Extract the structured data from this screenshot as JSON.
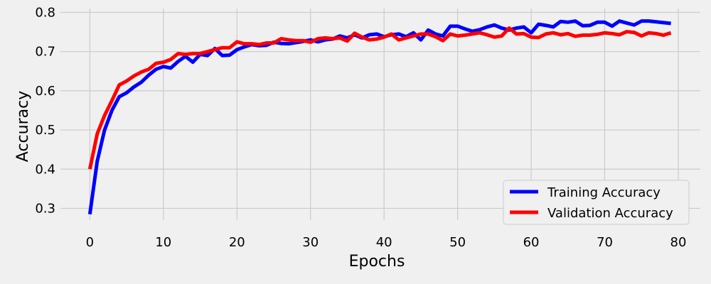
{
  "chart_data": {
    "type": "line",
    "title": "",
    "xlabel": "Epochs",
    "ylabel": "Accuracy",
    "xlim": [
      -4,
      83
    ],
    "ylim": [
      0.27,
      0.81
    ],
    "xticks": [
      0,
      10,
      20,
      30,
      40,
      50,
      60,
      70,
      80
    ],
    "yticks": [
      0.3,
      0.4,
      0.5,
      0.6,
      0.7,
      0.8
    ],
    "grid": true,
    "legend_position": "lower-right",
    "background": "#f0f0f0",
    "series": [
      {
        "name": "Training Accuracy",
        "color": "#0000ff",
        "x": [
          0,
          1,
          2,
          3,
          4,
          5,
          6,
          7,
          8,
          9,
          10,
          11,
          12,
          13,
          14,
          15,
          16,
          17,
          18,
          19,
          20,
          21,
          22,
          23,
          24,
          25,
          26,
          27,
          28,
          29,
          30,
          31,
          32,
          33,
          34,
          35,
          36,
          37,
          38,
          39,
          40,
          41,
          42,
          43,
          44,
          45,
          46,
          47,
          48,
          49,
          50,
          51,
          52,
          53,
          54,
          55,
          56,
          57,
          58,
          59,
          60,
          61,
          62,
          63,
          64,
          65,
          66,
          67,
          68,
          69,
          70,
          71,
          72,
          73,
          74,
          75,
          76,
          77,
          78,
          79
        ],
        "values": [
          0.285,
          0.42,
          0.5,
          0.55,
          0.585,
          0.595,
          0.61,
          0.622,
          0.64,
          0.655,
          0.662,
          0.658,
          0.675,
          0.688,
          0.673,
          0.693,
          0.69,
          0.708,
          0.69,
          0.691,
          0.705,
          0.712,
          0.718,
          0.715,
          0.716,
          0.724,
          0.721,
          0.72,
          0.723,
          0.726,
          0.73,
          0.725,
          0.73,
          0.732,
          0.74,
          0.735,
          0.743,
          0.735,
          0.743,
          0.745,
          0.738,
          0.743,
          0.745,
          0.738,
          0.748,
          0.73,
          0.755,
          0.745,
          0.74,
          0.765,
          0.765,
          0.758,
          0.752,
          0.756,
          0.763,
          0.768,
          0.76,
          0.755,
          0.76,
          0.763,
          0.748,
          0.77,
          0.767,
          0.763,
          0.777,
          0.775,
          0.778,
          0.766,
          0.767,
          0.775,
          0.775,
          0.765,
          0.778,
          0.773,
          0.768,
          0.778,
          0.778,
          0.776,
          0.774,
          0.772
        ]
      },
      {
        "name": "Validation Accuracy",
        "color": "#ff0000",
        "x": [
          0,
          1,
          2,
          3,
          4,
          5,
          6,
          7,
          8,
          9,
          10,
          11,
          12,
          13,
          14,
          15,
          16,
          17,
          18,
          19,
          20,
          21,
          22,
          23,
          24,
          25,
          26,
          27,
          28,
          29,
          30,
          31,
          32,
          33,
          34,
          35,
          36,
          37,
          38,
          39,
          40,
          41,
          42,
          43,
          44,
          45,
          46,
          47,
          48,
          49,
          50,
          51,
          52,
          53,
          54,
          55,
          56,
          57,
          58,
          59,
          60,
          61,
          62,
          63,
          64,
          65,
          66,
          67,
          68,
          69,
          70,
          71,
          72,
          73,
          74,
          75,
          76,
          77,
          78,
          79
        ],
        "values": [
          0.4,
          0.49,
          0.537,
          0.575,
          0.615,
          0.625,
          0.638,
          0.648,
          0.655,
          0.67,
          0.673,
          0.68,
          0.695,
          0.693,
          0.695,
          0.695,
          0.7,
          0.705,
          0.71,
          0.71,
          0.725,
          0.72,
          0.72,
          0.718,
          0.722,
          0.722,
          0.733,
          0.73,
          0.728,
          0.728,
          0.724,
          0.733,
          0.735,
          0.733,
          0.735,
          0.727,
          0.747,
          0.737,
          0.73,
          0.732,
          0.737,
          0.745,
          0.73,
          0.735,
          0.74,
          0.745,
          0.745,
          0.738,
          0.728,
          0.745,
          0.74,
          0.742,
          0.745,
          0.748,
          0.743,
          0.737,
          0.74,
          0.76,
          0.745,
          0.746,
          0.737,
          0.736,
          0.745,
          0.748,
          0.743,
          0.746,
          0.739,
          0.742,
          0.742,
          0.744,
          0.748,
          0.746,
          0.743,
          0.751,
          0.749,
          0.74,
          0.748,
          0.746,
          0.742,
          0.748
        ]
      }
    ]
  }
}
